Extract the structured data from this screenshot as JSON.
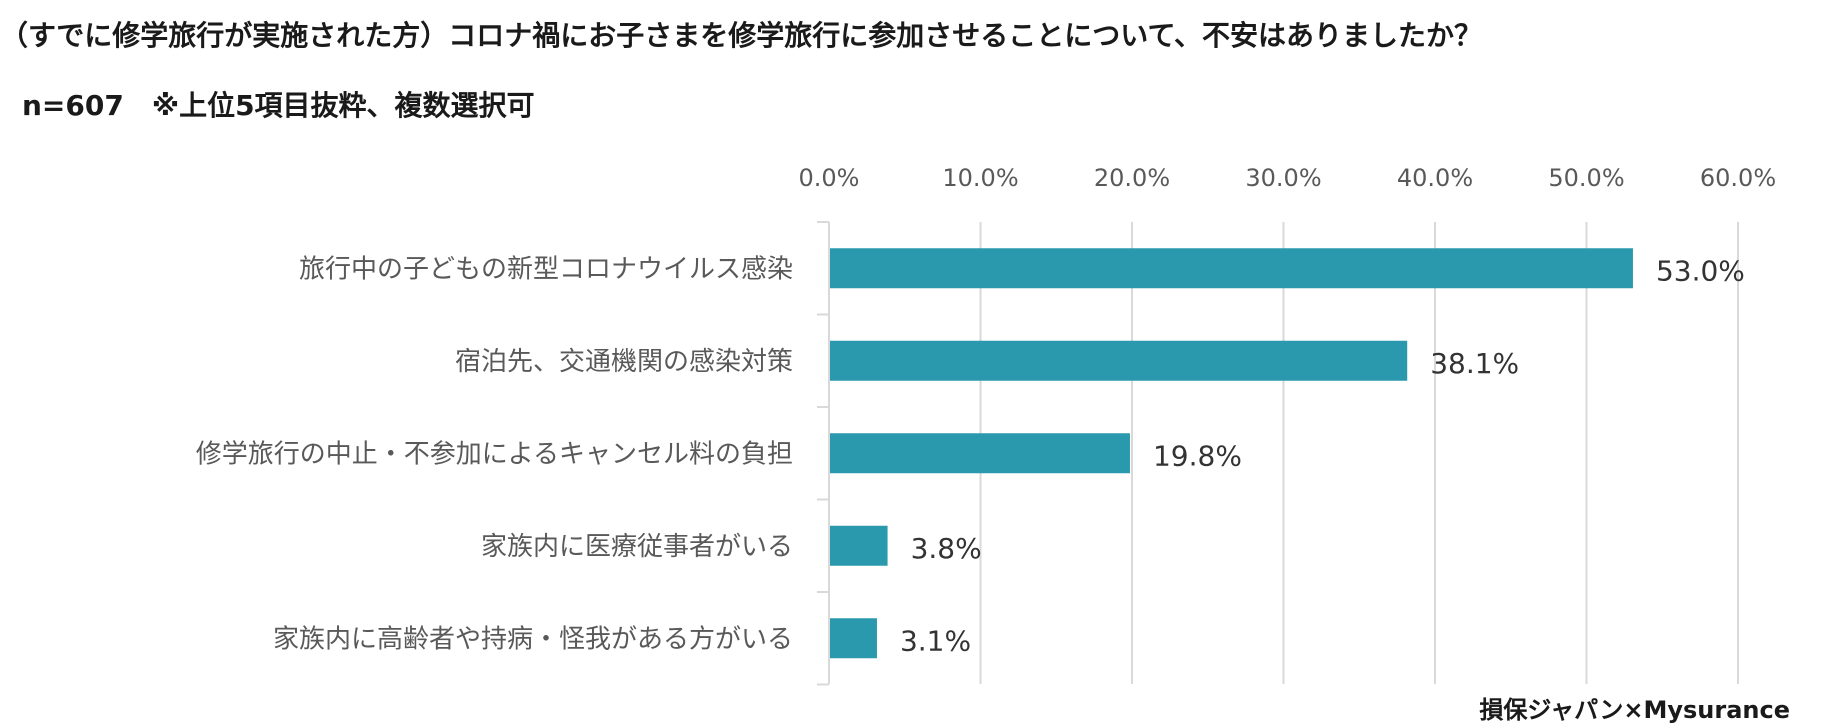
{
  "chart_data": {
    "type": "bar",
    "orientation": "horizontal",
    "title": "（すでに修学旅行が実施された方）コロナ禍にお子さまを修学旅行に参加させることについて、不安はありましたか？",
    "subtitle": "n=607　※上位5項目抜粋、複数選択可",
    "categories": [
      "旅行中の子どもの新型コロナウイルス感染",
      "宿泊先、交通機関の感染対策",
      "修学旅行の中止・不参加によるキャンセル料の負担",
      "家族内に医療従事者がいる",
      "家族内に高齢者や持病・怪我がある方がいる"
    ],
    "values": [
      53.0,
      38.1,
      19.8,
      3.8,
      3.1
    ],
    "value_labels": [
      "53.0%",
      "38.1%",
      "19.8%",
      "3.8%",
      "3.1%"
    ],
    "xlim": [
      0,
      60
    ],
    "ticks": [
      "0.0%",
      "10.0%",
      "20.0%",
      "30.0%",
      "40.0%",
      "50.0%",
      "60.0%"
    ],
    "tick_values": [
      0,
      10,
      20,
      30,
      40,
      50,
      60
    ],
    "grid": true,
    "axis_position": "top",
    "bar_color": "#2a99ae",
    "grid_color": "#d9d9d9",
    "credit": "損保ジャパン×Mysurance"
  }
}
